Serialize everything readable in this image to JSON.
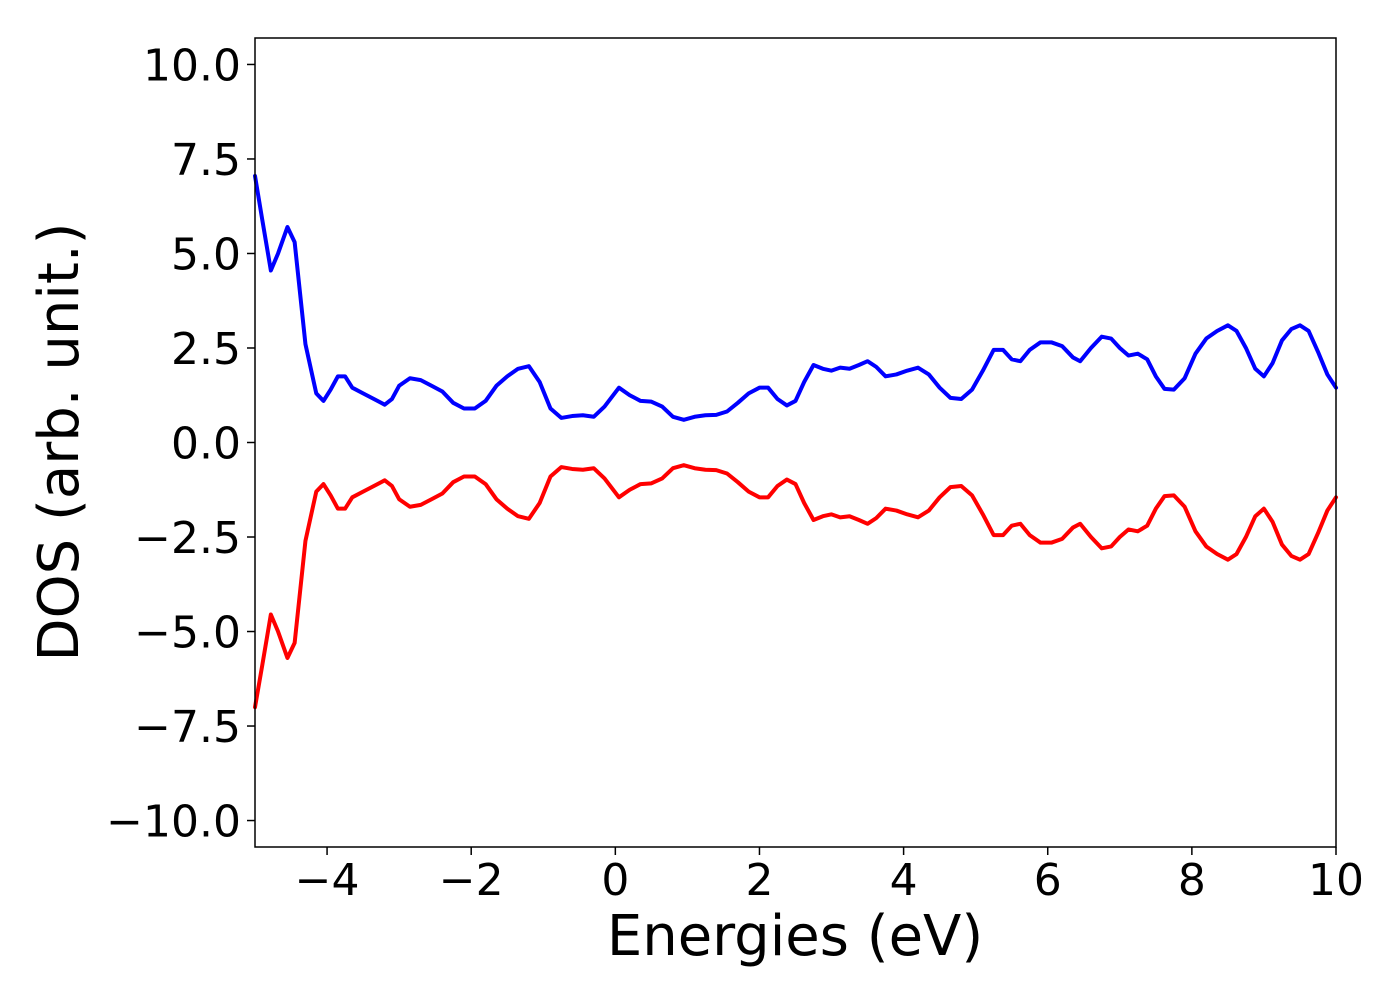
{
  "chart_data": {
    "type": "line",
    "xlabel": "Energies (eV)",
    "ylabel": "DOS (arb. unit.)",
    "xlim": [
      -5,
      10
    ],
    "ylim": [
      -10.7,
      10.7
    ],
    "grid": false,
    "x_ticks": [
      -4,
      -2,
      0,
      2,
      4,
      6,
      8,
      10
    ],
    "x_tick_labels": [
      "−4",
      "−2",
      "0",
      "2",
      "4",
      "6",
      "8",
      "10"
    ],
    "y_ticks": [
      10.0,
      7.5,
      5.0,
      2.5,
      0.0,
      -2.5,
      -5.0,
      -7.5,
      -10.0
    ],
    "y_tick_labels": [
      "10.0",
      "7.5",
      "5.0",
      "2.5",
      "0.0",
      "−2.5",
      "−5.0",
      "−7.5",
      "−10.0"
    ],
    "series": [
      {
        "color": "#0000ff",
        "points": [
          [
            -5.0,
            7.05
          ],
          [
            -4.9,
            5.9
          ],
          [
            -4.78,
            4.55
          ],
          [
            -4.68,
            5.0
          ],
          [
            -4.55,
            5.7
          ],
          [
            -4.45,
            5.3
          ],
          [
            -4.3,
            2.6
          ],
          [
            -4.15,
            1.3
          ],
          [
            -4.05,
            1.1
          ],
          [
            -3.95,
            1.4
          ],
          [
            -3.85,
            1.75
          ],
          [
            -3.75,
            1.75
          ],
          [
            -3.65,
            1.45
          ],
          [
            -3.5,
            1.3
          ],
          [
            -3.35,
            1.15
          ],
          [
            -3.2,
            1.0
          ],
          [
            -3.1,
            1.15
          ],
          [
            -3.0,
            1.5
          ],
          [
            -2.85,
            1.7
          ],
          [
            -2.7,
            1.65
          ],
          [
            -2.55,
            1.5
          ],
          [
            -2.4,
            1.35
          ],
          [
            -2.25,
            1.05
          ],
          [
            -2.1,
            0.9
          ],
          [
            -1.95,
            0.9
          ],
          [
            -1.8,
            1.1
          ],
          [
            -1.65,
            1.5
          ],
          [
            -1.5,
            1.75
          ],
          [
            -1.35,
            1.95
          ],
          [
            -1.2,
            2.02
          ],
          [
            -1.05,
            1.6
          ],
          [
            -0.9,
            0.9
          ],
          [
            -0.75,
            0.65
          ],
          [
            -0.6,
            0.7
          ],
          [
            -0.45,
            0.72
          ],
          [
            -0.3,
            0.68
          ],
          [
            -0.15,
            0.95
          ],
          [
            0.05,
            1.45
          ],
          [
            0.2,
            1.25
          ],
          [
            0.35,
            1.1
          ],
          [
            0.5,
            1.08
          ],
          [
            0.65,
            0.95
          ],
          [
            0.8,
            0.68
          ],
          [
            0.95,
            0.6
          ],
          [
            1.1,
            0.68
          ],
          [
            1.25,
            0.72
          ],
          [
            1.4,
            0.73
          ],
          [
            1.55,
            0.82
          ],
          [
            1.7,
            1.05
          ],
          [
            1.85,
            1.3
          ],
          [
            2.0,
            1.45
          ],
          [
            2.12,
            1.45
          ],
          [
            2.25,
            1.15
          ],
          [
            2.38,
            0.98
          ],
          [
            2.5,
            1.1
          ],
          [
            2.62,
            1.6
          ],
          [
            2.75,
            2.05
          ],
          [
            2.88,
            1.95
          ],
          [
            3.0,
            1.9
          ],
          [
            3.12,
            1.98
          ],
          [
            3.25,
            1.95
          ],
          [
            3.38,
            2.05
          ],
          [
            3.5,
            2.15
          ],
          [
            3.62,
            2.0
          ],
          [
            3.75,
            1.75
          ],
          [
            3.9,
            1.8
          ],
          [
            4.05,
            1.9
          ],
          [
            4.2,
            1.98
          ],
          [
            4.35,
            1.8
          ],
          [
            4.5,
            1.45
          ],
          [
            4.65,
            1.18
          ],
          [
            4.8,
            1.15
          ],
          [
            4.95,
            1.4
          ],
          [
            5.1,
            1.9
          ],
          [
            5.25,
            2.45
          ],
          [
            5.38,
            2.45
          ],
          [
            5.5,
            2.2
          ],
          [
            5.62,
            2.15
          ],
          [
            5.75,
            2.45
          ],
          [
            5.9,
            2.65
          ],
          [
            6.05,
            2.65
          ],
          [
            6.2,
            2.55
          ],
          [
            6.35,
            2.25
          ],
          [
            6.45,
            2.15
          ],
          [
            6.6,
            2.5
          ],
          [
            6.75,
            2.8
          ],
          [
            6.88,
            2.75
          ],
          [
            7.0,
            2.5
          ],
          [
            7.12,
            2.3
          ],
          [
            7.25,
            2.35
          ],
          [
            7.38,
            2.2
          ],
          [
            7.5,
            1.75
          ],
          [
            7.62,
            1.42
          ],
          [
            7.75,
            1.4
          ],
          [
            7.9,
            1.7
          ],
          [
            8.05,
            2.35
          ],
          [
            8.2,
            2.75
          ],
          [
            8.35,
            2.95
          ],
          [
            8.5,
            3.1
          ],
          [
            8.62,
            2.95
          ],
          [
            8.75,
            2.5
          ],
          [
            8.88,
            1.95
          ],
          [
            9.0,
            1.75
          ],
          [
            9.12,
            2.1
          ],
          [
            9.25,
            2.7
          ],
          [
            9.38,
            3.0
          ],
          [
            9.5,
            3.1
          ],
          [
            9.62,
            2.95
          ],
          [
            9.75,
            2.4
          ],
          [
            9.88,
            1.8
          ],
          [
            10.0,
            1.45
          ]
        ]
      },
      {
        "color": "#ff0000",
        "points": [
          [
            -5.0,
            -7.0
          ],
          [
            -4.9,
            -5.9
          ],
          [
            -4.78,
            -4.55
          ],
          [
            -4.68,
            -5.0
          ],
          [
            -4.55,
            -5.7
          ],
          [
            -4.45,
            -5.3
          ],
          [
            -4.3,
            -2.6
          ],
          [
            -4.15,
            -1.3
          ],
          [
            -4.05,
            -1.1
          ],
          [
            -3.95,
            -1.4
          ],
          [
            -3.85,
            -1.75
          ],
          [
            -3.75,
            -1.75
          ],
          [
            -3.65,
            -1.45
          ],
          [
            -3.5,
            -1.3
          ],
          [
            -3.35,
            -1.15
          ],
          [
            -3.2,
            -1.0
          ],
          [
            -3.1,
            -1.15
          ],
          [
            -3.0,
            -1.5
          ],
          [
            -2.85,
            -1.7
          ],
          [
            -2.7,
            -1.65
          ],
          [
            -2.55,
            -1.5
          ],
          [
            -2.4,
            -1.35
          ],
          [
            -2.25,
            -1.05
          ],
          [
            -2.1,
            -0.9
          ],
          [
            -1.95,
            -0.9
          ],
          [
            -1.8,
            -1.1
          ],
          [
            -1.65,
            -1.5
          ],
          [
            -1.5,
            -1.75
          ],
          [
            -1.35,
            -1.95
          ],
          [
            -1.2,
            -2.02
          ],
          [
            -1.05,
            -1.6
          ],
          [
            -0.9,
            -0.9
          ],
          [
            -0.75,
            -0.65
          ],
          [
            -0.6,
            -0.7
          ],
          [
            -0.45,
            -0.72
          ],
          [
            -0.3,
            -0.68
          ],
          [
            -0.15,
            -0.95
          ],
          [
            0.05,
            -1.45
          ],
          [
            0.2,
            -1.25
          ],
          [
            0.35,
            -1.1
          ],
          [
            0.5,
            -1.08
          ],
          [
            0.65,
            -0.95
          ],
          [
            0.8,
            -0.68
          ],
          [
            0.95,
            -0.6
          ],
          [
            1.1,
            -0.68
          ],
          [
            1.25,
            -0.72
          ],
          [
            1.4,
            -0.73
          ],
          [
            1.55,
            -0.82
          ],
          [
            1.7,
            -1.05
          ],
          [
            1.85,
            -1.3
          ],
          [
            2.0,
            -1.45
          ],
          [
            2.12,
            -1.45
          ],
          [
            2.25,
            -1.15
          ],
          [
            2.38,
            -0.98
          ],
          [
            2.5,
            -1.1
          ],
          [
            2.62,
            -1.6
          ],
          [
            2.75,
            -2.05
          ],
          [
            2.88,
            -1.95
          ],
          [
            3.0,
            -1.9
          ],
          [
            3.12,
            -1.98
          ],
          [
            3.25,
            -1.95
          ],
          [
            3.38,
            -2.05
          ],
          [
            3.5,
            -2.15
          ],
          [
            3.62,
            -2.0
          ],
          [
            3.75,
            -1.75
          ],
          [
            3.9,
            -1.8
          ],
          [
            4.05,
            -1.9
          ],
          [
            4.2,
            -1.98
          ],
          [
            4.35,
            -1.8
          ],
          [
            4.5,
            -1.45
          ],
          [
            4.65,
            -1.18
          ],
          [
            4.8,
            -1.15
          ],
          [
            4.95,
            -1.4
          ],
          [
            5.1,
            -1.9
          ],
          [
            5.25,
            -2.45
          ],
          [
            5.38,
            -2.45
          ],
          [
            5.5,
            -2.2
          ],
          [
            5.62,
            -2.15
          ],
          [
            5.75,
            -2.45
          ],
          [
            5.9,
            -2.65
          ],
          [
            6.05,
            -2.65
          ],
          [
            6.2,
            -2.55
          ],
          [
            6.35,
            -2.25
          ],
          [
            6.45,
            -2.15
          ],
          [
            6.6,
            -2.5
          ],
          [
            6.75,
            -2.8
          ],
          [
            6.88,
            -2.75
          ],
          [
            7.0,
            -2.5
          ],
          [
            7.12,
            -2.3
          ],
          [
            7.25,
            -2.35
          ],
          [
            7.38,
            -2.2
          ],
          [
            7.5,
            -1.75
          ],
          [
            7.62,
            -1.42
          ],
          [
            7.75,
            -1.4
          ],
          [
            7.9,
            -1.7
          ],
          [
            8.05,
            -2.35
          ],
          [
            8.2,
            -2.75
          ],
          [
            8.35,
            -2.95
          ],
          [
            8.5,
            -3.1
          ],
          [
            8.62,
            -2.95
          ],
          [
            8.75,
            -2.5
          ],
          [
            8.88,
            -1.95
          ],
          [
            9.0,
            -1.75
          ],
          [
            9.12,
            -2.1
          ],
          [
            9.25,
            -2.7
          ],
          [
            9.38,
            -3.0
          ],
          [
            9.5,
            -3.1
          ],
          [
            9.62,
            -2.95
          ],
          [
            9.75,
            -2.4
          ],
          [
            9.88,
            -1.8
          ],
          [
            10.0,
            -1.45
          ]
        ]
      }
    ]
  }
}
